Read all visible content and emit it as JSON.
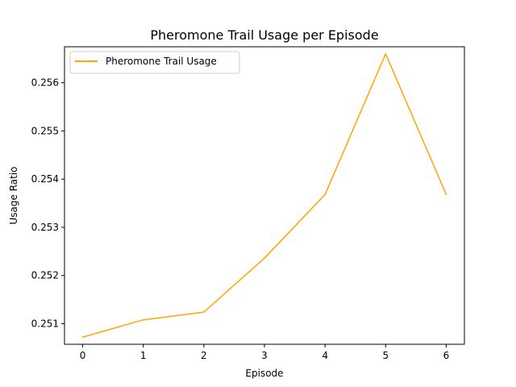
{
  "chart_data": {
    "type": "line",
    "title": "Pheromone Trail Usage per Episode",
    "xlabel": "Episode",
    "ylabel": "Usage Ratio",
    "x": [
      0,
      1,
      2,
      3,
      4,
      5,
      6
    ],
    "series": [
      {
        "name": "Pheromone Trail Usage",
        "color": "#ffa500",
        "values": [
          0.25072,
          0.25108,
          0.25124,
          0.25236,
          0.25368,
          0.2566,
          0.25368
        ]
      }
    ],
    "xticks": [
      0,
      1,
      2,
      3,
      4,
      5,
      6
    ],
    "xtick_labels": [
      "0",
      "1",
      "2",
      "3",
      "4",
      "5",
      "6"
    ],
    "yticks": [
      0.251,
      0.252,
      0.253,
      0.254,
      0.255,
      0.256
    ],
    "ytick_labels": [
      "0.251",
      "0.252",
      "0.253",
      "0.254",
      "0.255",
      "0.256"
    ],
    "xlim": [
      -0.3,
      6.3
    ],
    "ylim": [
      0.250573,
      0.256747
    ],
    "grid": false,
    "legend_position": "upper-left"
  }
}
